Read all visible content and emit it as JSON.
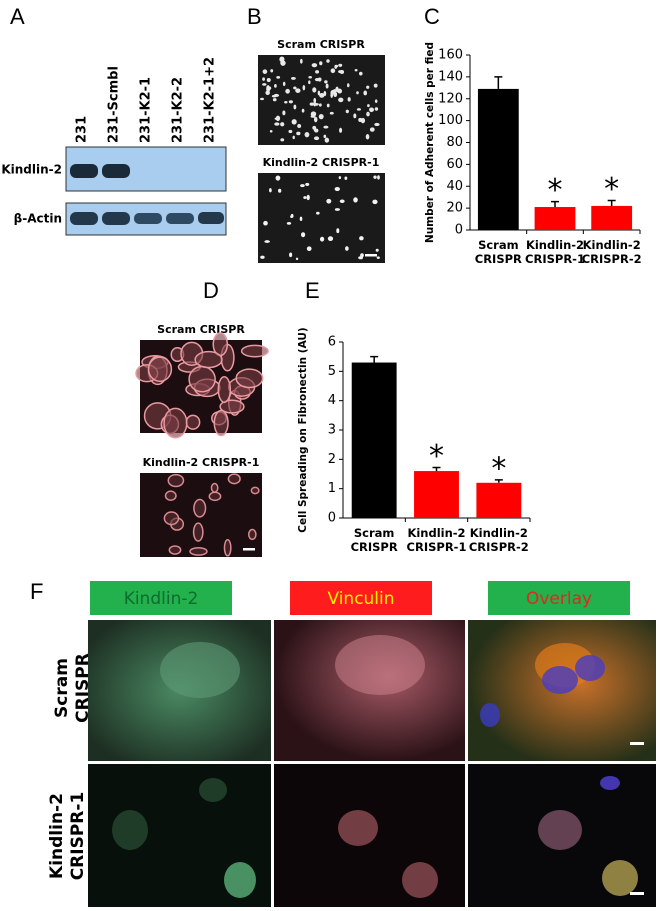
{
  "panel_letters": [
    "A",
    "B",
    "C",
    "D",
    "E",
    "F"
  ],
  "blot": {
    "lanes": [
      "231",
      "231-Scmbl",
      "231-K2-1",
      "231-K2-2",
      "231-K2-1+2"
    ],
    "rows": [
      "Kindlin-2",
      "β-Actin"
    ]
  },
  "microscopy_B": {
    "captions": [
      "Scram CRISPR",
      "Kindlin-2 CRISPR-1"
    ]
  },
  "microscopy_D": {
    "captions": [
      "Scram CRISPR",
      "Kindlin-2 CRISPR-1"
    ]
  },
  "panel_F": {
    "columns": [
      "Kindlin-2",
      "Vinculin",
      "Overlay"
    ],
    "rows": [
      "Scram CRISPR",
      "Kindlin-2 CRISPR-1"
    ]
  },
  "chart_data": [
    {
      "type": "bar",
      "y_label": "Number of Adherent cells per fied",
      "categories": [
        "Scram CRISPR",
        "Kindlin-2 CRISPR-1",
        "Kindlin-2 CRISPR-2"
      ],
      "values": [
        129,
        21,
        22
      ],
      "errors": [
        11,
        5,
        5
      ],
      "colors": [
        "#000000",
        "#ff0000",
        "#ff0000"
      ],
      "significance": [
        null,
        "*",
        "*"
      ],
      "ylim": [
        0,
        160
      ],
      "yticks": [
        0,
        20,
        40,
        60,
        80,
        100,
        120,
        140,
        160
      ],
      "grid": false
    },
    {
      "type": "bar",
      "y_label": "Cell Spreading on Fibronectin (AU)",
      "categories": [
        "Scram CRISPR",
        "Kindlin-2 CRISPR-1",
        "Kindlin-2 CRISPR-2"
      ],
      "values": [
        5.3,
        1.6,
        1.2
      ],
      "errors": [
        0.2,
        0.12,
        0.1
      ],
      "colors": [
        "#000000",
        "#ff0000",
        "#ff0000"
      ],
      "significance": [
        null,
        "*",
        "*"
      ],
      "ylim": [
        0,
        6
      ],
      "yticks": [
        0,
        1,
        2,
        3,
        4,
        5,
        6
      ],
      "grid": false
    }
  ]
}
